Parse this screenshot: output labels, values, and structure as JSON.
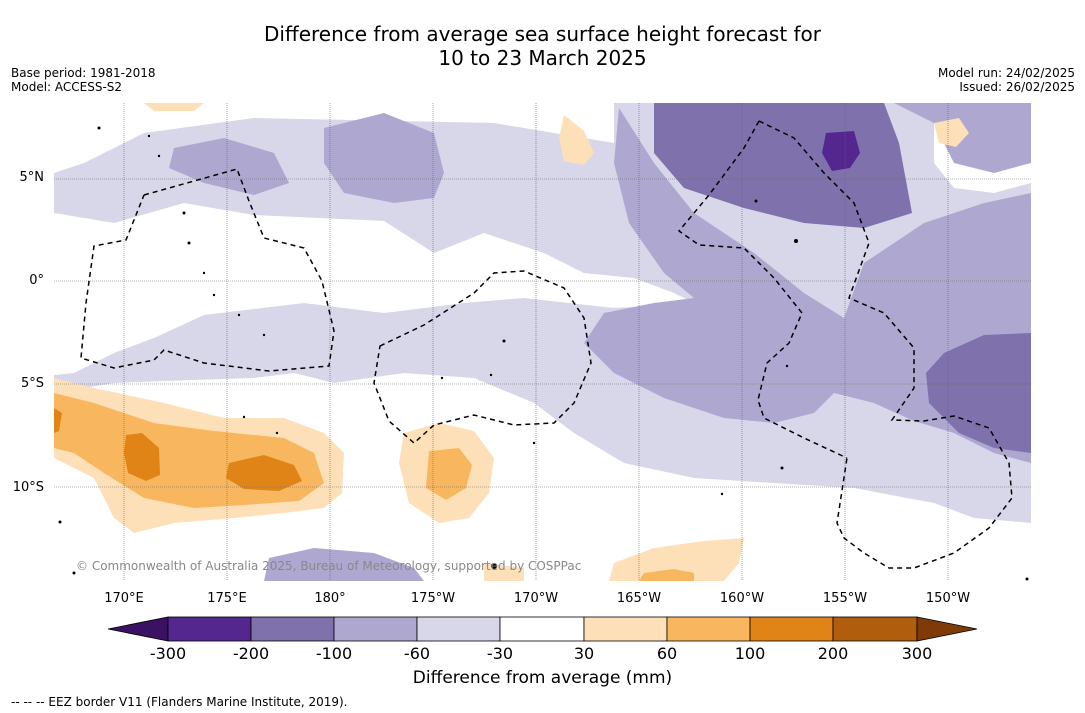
{
  "header": {
    "title_line1": "Difference from average sea surface height forecast for",
    "title_line2": "10 to 23 March 2025",
    "base_period": "Base period: 1981-2018",
    "model": "Model: ACCESS-S2",
    "model_run": "Model run: 24/02/2025",
    "issued": "Issued: 26/02/2025"
  },
  "map": {
    "lat_labels": [
      "5°N",
      "0°",
      "5°S",
      "10°S"
    ],
    "lon_labels": [
      "170°E",
      "175°E",
      "180°",
      "175°W",
      "170°W",
      "165°W",
      "160°W",
      "155°W",
      "150°W"
    ],
    "credit": "© Commonwealth of Australia 2025, Bureau of Meteorology, supported by COSPPac",
    "colors": {
      "neg_300": "#3b1163",
      "neg_200_300": "#54278f",
      "neg_100_200": "#7f71ab",
      "neg_60_100": "#aea8d0",
      "neg_30_60": "#d7d7e9",
      "neutral": "#ffffff",
      "pos_30_60": "#fde0b7",
      "pos_60_100": "#f8b75e",
      "pos_100_200": "#e08418",
      "pos_200_300": "#b05d0e",
      "pos_300": "#7f3b07"
    }
  },
  "colorbar": {
    "ticks": [
      "-300",
      "-200",
      "-100",
      "-60",
      "-30",
      "30",
      "60",
      "100",
      "200",
      "300"
    ],
    "label": "Difference from average (mm)",
    "colors": [
      "#54278f",
      "#7f71ab",
      "#aea8d0",
      "#d7d7e9",
      "#ffffff",
      "#fde0b7",
      "#f8b75e",
      "#e08418",
      "#b05d0e"
    ],
    "extend_low": "#3b1163",
    "extend_high": "#7f3b07"
  },
  "footnote": "--  --  -- EEZ border V11 (Flanders Marine Institute, 2019)."
}
